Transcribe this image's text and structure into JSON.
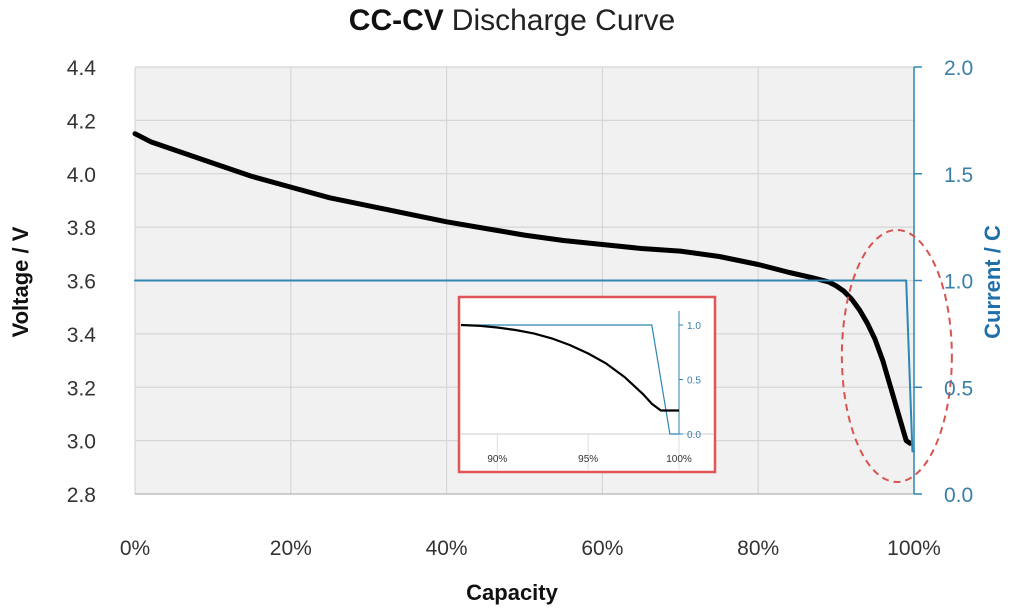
{
  "chart_data": {
    "type": "line",
    "title_bold": "CC-CV",
    "title_rest": "Discharge Curve",
    "xlabel": "Capacity",
    "ylabel": "Voltage / V",
    "y2label": "Current / C",
    "xlim": [
      0,
      100
    ],
    "ylim": [
      2.8,
      4.4
    ],
    "y2lim": [
      0.0,
      2.0
    ],
    "x_ticks": [
      "0%",
      "20%",
      "40%",
      "60%",
      "80%",
      "100%"
    ],
    "x_tick_values": [
      0,
      20,
      40,
      60,
      80,
      100
    ],
    "y_ticks": [
      "2.8",
      "3.0",
      "3.2",
      "3.4",
      "3.6",
      "3.8",
      "4.0",
      "4.2",
      "4.4"
    ],
    "y_tick_values": [
      2.8,
      3.0,
      3.2,
      3.4,
      3.6,
      3.8,
      4.0,
      4.2,
      4.4
    ],
    "y2_ticks": [
      "0.0",
      "0.5",
      "1.0",
      "1.5",
      "2.0"
    ],
    "y2_tick_values": [
      0.0,
      0.5,
      1.0,
      1.5,
      2.0
    ],
    "grid": true,
    "series": [
      {
        "axis": "left",
        "color": "#000000",
        "x": [
          0,
          2,
          5,
          10,
          15,
          20,
          25,
          30,
          35,
          40,
          45,
          50,
          55,
          60,
          65,
          70,
          75,
          80,
          84,
          87,
          89,
          90,
          91,
          92,
          93,
          94,
          95,
          96,
          97,
          98,
          99,
          99.5
        ],
        "y": [
          4.15,
          4.12,
          4.09,
          4.04,
          3.99,
          3.95,
          3.91,
          3.88,
          3.85,
          3.82,
          3.795,
          3.77,
          3.75,
          3.735,
          3.72,
          3.71,
          3.69,
          3.66,
          3.63,
          3.61,
          3.595,
          3.58,
          3.56,
          3.53,
          3.49,
          3.44,
          3.38,
          3.3,
          3.2,
          3.1,
          3.0,
          2.99
        ]
      },
      {
        "axis": "right",
        "color": "#2e86b3",
        "x": [
          0,
          99,
          99.8,
          100
        ],
        "y": [
          1.0,
          1.0,
          0.2,
          0.2
        ]
      }
    ],
    "inset": {
      "xlim": [
        88,
        100
      ],
      "x_ticks": [
        "90%",
        "95%",
        "100%"
      ],
      "x_tick_values": [
        90,
        95,
        100
      ],
      "y2_ticks": [
        "0.0",
        "0.5",
        "1.0"
      ],
      "y2_tick_values": [
        0.0,
        0.5,
        1.0
      ],
      "ylim": [
        2.95,
        3.6
      ],
      "voltage": {
        "x": [
          88,
          89,
          90,
          91,
          92,
          93,
          94,
          95,
          96,
          97,
          98,
          98.5,
          99,
          100
        ],
        "y": [
          3.6,
          3.595,
          3.585,
          3.57,
          3.55,
          3.52,
          3.48,
          3.43,
          3.37,
          3.29,
          3.19,
          3.13,
          3.09,
          3.09
        ]
      },
      "current": {
        "x": [
          88,
          98.5,
          99.5,
          100
        ],
        "y": [
          1.0,
          1.0,
          0.0,
          0.0
        ]
      }
    },
    "annotation": "red dashed ellipse highlighting the end-of-discharge region",
    "annotation_color": "#d9534f",
    "inset_border_color": "#e05555"
  }
}
